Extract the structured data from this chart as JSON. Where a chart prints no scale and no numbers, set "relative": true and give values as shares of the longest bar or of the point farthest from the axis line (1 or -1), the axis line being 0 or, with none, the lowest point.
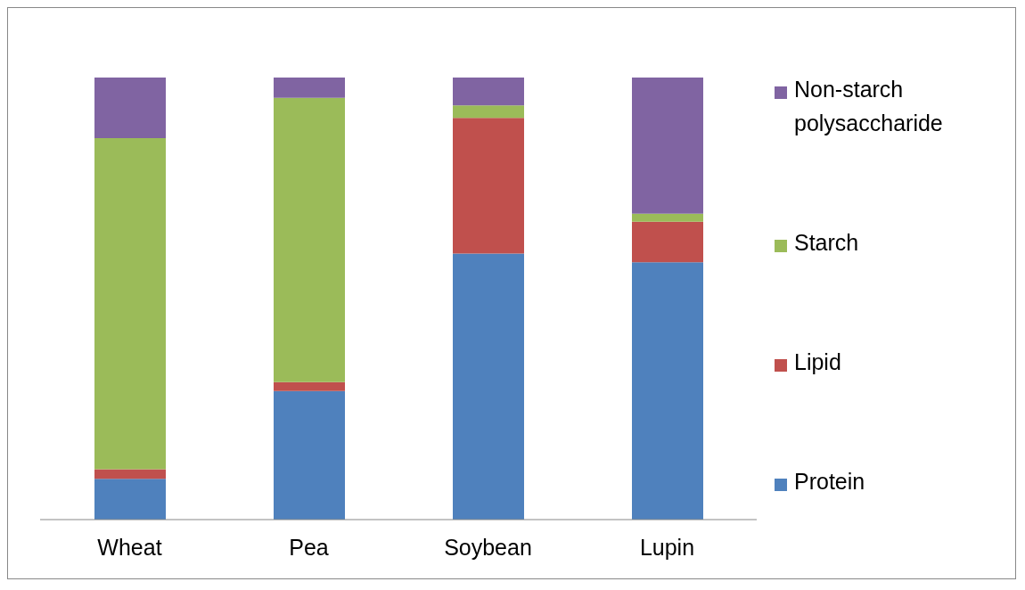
{
  "chart_data": {
    "type": "bar",
    "stacked": true,
    "relative": true,
    "legend": "right",
    "categories": [
      "Wheat",
      "Pea",
      "Soybean",
      "Lupin"
    ],
    "series": [
      {
        "name": "Protein",
        "color": "#4f81bd",
        "values": [
          0.092,
          0.291,
          0.602,
          0.582
        ]
      },
      {
        "name": "Lipid",
        "color": "#c0504d",
        "values": [
          0.022,
          0.02,
          0.307,
          0.092
        ]
      },
      {
        "name": "Starch",
        "color": "#9bbb59",
        "values": [
          0.749,
          0.643,
          0.028,
          0.018
        ]
      },
      {
        "name": "Non-starch polysaccharide",
        "color": "#8064a2",
        "values": [
          0.137,
          0.046,
          0.063,
          0.308
        ]
      }
    ]
  }
}
